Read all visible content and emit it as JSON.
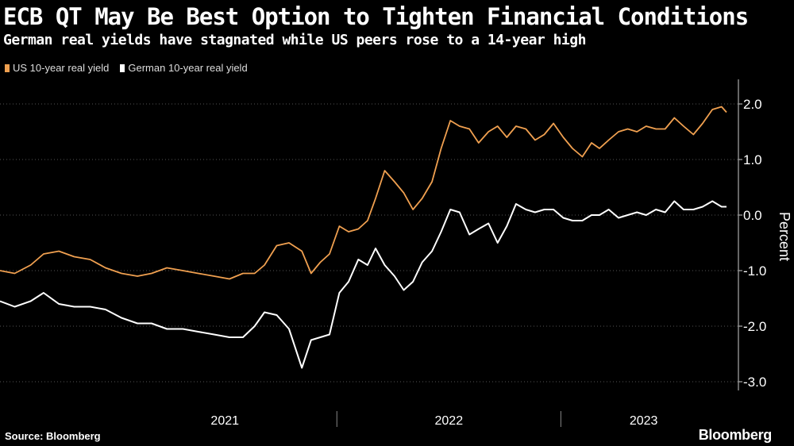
{
  "header": {
    "title": "ECB QT May Be Best Option to Tighten Financial Conditions",
    "subtitle": "German real yields have stagnated while US peers rose to a 14-year high"
  },
  "footer": {
    "source": "Source: Bloomberg",
    "brand": "Bloomberg"
  },
  "chart_data": {
    "type": "line",
    "title": "ECB QT May Be Best Option to Tighten Financial Conditions",
    "subtitle": "German real yields have stagnated while US peers rose to a 14-year high",
    "ylabel": "Percent",
    "xlabel": "",
    "ylim": [
      -3.2,
      2.4
    ],
    "yticks": [
      -3.0,
      -2.0,
      -1.0,
      0.0,
      1.0,
      2.0
    ],
    "ytick_labels": [
      "-3.0",
      "-2.0",
      "-1.0",
      "0.0",
      "1.0",
      "2.0"
    ],
    "x_range": [
      "2020-07-01",
      "2023-09-28"
    ],
    "year_labels": [
      {
        "label": "2021",
        "date": "2021-01-01"
      },
      {
        "label": "2022",
        "date": "2022-01-01"
      },
      {
        "label": "2023",
        "date": "2023-01-01"
      }
    ],
    "grid": "horizontal dotted",
    "legend_placement": "top-left",
    "colors": {
      "us": "#f0a050",
      "german": "#ffffff",
      "background": "#000000"
    },
    "x": [
      "2020-07-01",
      "2020-07-25",
      "2020-08-20",
      "2020-09-10",
      "2020-10-05",
      "2020-10-30",
      "2020-11-25",
      "2020-12-20",
      "2021-01-15",
      "2021-02-10",
      "2021-03-05",
      "2021-03-30",
      "2021-04-25",
      "2021-05-20",
      "2021-06-15",
      "2021-07-10",
      "2021-08-01",
      "2021-08-20",
      "2021-09-05",
      "2021-09-25",
      "2021-10-15",
      "2021-11-05",
      "2021-11-20",
      "2021-12-05",
      "2021-12-20",
      "2022-01-05",
      "2022-01-20",
      "2022-02-05",
      "2022-02-20",
      "2022-03-05",
      "2022-03-20",
      "2022-04-05",
      "2022-04-20",
      "2022-05-05",
      "2022-05-20",
      "2022-06-05",
      "2022-06-20",
      "2022-07-05",
      "2022-07-20",
      "2022-08-05",
      "2022-08-20",
      "2022-09-05",
      "2022-09-20",
      "2022-10-05",
      "2022-10-20",
      "2022-11-05",
      "2022-11-20",
      "2022-12-05",
      "2022-12-20",
      "2023-01-05",
      "2023-01-20",
      "2023-02-05",
      "2023-02-20",
      "2023-03-05",
      "2023-03-20",
      "2023-04-05",
      "2023-04-20",
      "2023-05-05",
      "2023-05-20",
      "2023-06-05",
      "2023-06-20",
      "2023-07-05",
      "2023-07-20",
      "2023-08-05",
      "2023-08-20",
      "2023-09-05",
      "2023-09-20",
      "2023-09-28"
    ],
    "series": [
      {
        "name": "US 10-year real yield",
        "color": "#f0a050",
        "values": [
          -1.0,
          -1.05,
          -0.9,
          -0.7,
          -0.65,
          -0.75,
          -0.8,
          -0.95,
          -1.05,
          -1.1,
          -1.05,
          -0.95,
          -1.0,
          -1.05,
          -1.1,
          -1.15,
          -1.05,
          -1.05,
          -0.9,
          -0.55,
          -0.5,
          -0.65,
          -1.05,
          -0.85,
          -0.7,
          -0.2,
          -0.3,
          -0.25,
          -0.1,
          0.3,
          0.8,
          0.6,
          0.4,
          0.1,
          0.3,
          0.6,
          1.2,
          1.7,
          1.6,
          1.55,
          1.3,
          1.5,
          1.6,
          1.4,
          1.6,
          1.55,
          1.35,
          1.45,
          1.65,
          1.4,
          1.2,
          1.05,
          1.3,
          1.2,
          1.35,
          1.5,
          1.55,
          1.5,
          1.6,
          1.55,
          1.55,
          1.75,
          1.6,
          1.45,
          1.65,
          1.9,
          1.95,
          1.85
        ]
      },
      {
        "name": "German 10-year real yield",
        "color": "#ffffff",
        "values": [
          -1.55,
          -1.65,
          -1.55,
          -1.4,
          -1.6,
          -1.65,
          -1.65,
          -1.7,
          -1.85,
          -1.95,
          -1.95,
          -2.05,
          -2.05,
          -2.1,
          -2.15,
          -2.2,
          -2.2,
          -2.0,
          -1.75,
          -1.8,
          -2.05,
          -2.75,
          -2.25,
          -2.2,
          -2.15,
          -1.4,
          -1.2,
          -0.8,
          -0.9,
          -0.6,
          -0.9,
          -1.1,
          -1.35,
          -1.2,
          -0.85,
          -0.65,
          -0.3,
          0.1,
          0.05,
          -0.35,
          -0.25,
          -0.15,
          -0.5,
          -0.2,
          0.2,
          0.1,
          0.05,
          0.1,
          0.1,
          -0.05,
          -0.1,
          -0.1,
          0.0,
          0.0,
          0.1,
          -0.05,
          0.0,
          0.05,
          0.0,
          0.1,
          0.05,
          0.25,
          0.1,
          0.1,
          0.15,
          0.25,
          0.15,
          0.15
        ]
      }
    ]
  }
}
